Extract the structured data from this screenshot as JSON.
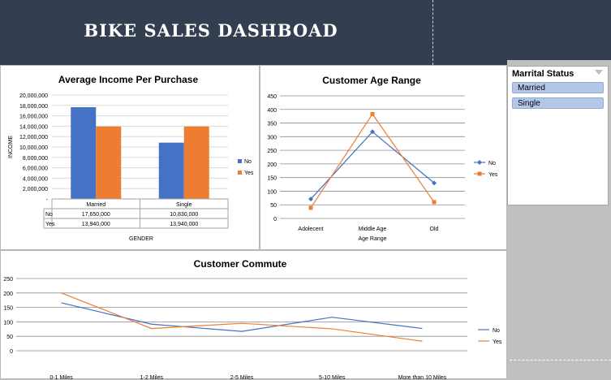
{
  "dashboard": {
    "title": "BIKE SALES DASHBOAD"
  },
  "colors": {
    "no": "#4472c4",
    "yes": "#ed7d31",
    "header": "#333f50",
    "grid": "#8c8c8c"
  },
  "slicer": {
    "title": "Marrital Status",
    "filter_icon": "filter-icon",
    "items": [
      "Married",
      "Single"
    ]
  },
  "chart_data": [
    {
      "type": "bar",
      "title": "Average Income  Per Purchase",
      "xlabel": "GENDER",
      "ylabel": "INCOME",
      "categories": [
        "Married",
        "Single"
      ],
      "series": [
        {
          "name": "No",
          "values": [
            17650000,
            10830000
          ],
          "display": [
            "17,650,000",
            "10,830,000"
          ]
        },
        {
          "name": "Yes",
          "values": [
            13940000,
            13940000
          ],
          "display": [
            "13,940,000",
            "13,940,000"
          ]
        }
      ],
      "ylim": [
        0,
        20000000
      ],
      "yticks": [
        "-",
        "2,000,000",
        "4,000,000",
        "6,000,000",
        "8,000,000",
        "10,000,000",
        "12,000,000",
        "14,000,000",
        "16,000,000",
        "18,000,000",
        "20,000,000"
      ],
      "legend": "right",
      "data_table": true
    },
    {
      "type": "line",
      "title": "Customer Age Range",
      "xlabel": "Age Range",
      "ylabel": "",
      "categories": [
        "Adolecent",
        "Middle Age",
        "Old"
      ],
      "series": [
        {
          "name": "No",
          "values": [
            71,
            318,
            130
          ]
        },
        {
          "name": "Yes",
          "values": [
            39,
            383,
            60
          ]
        }
      ],
      "ylim": [
        0,
        450
      ],
      "yticks": [
        "0",
        "50",
        "100",
        "150",
        "200",
        "250",
        "300",
        "350",
        "400",
        "450"
      ],
      "markers": true,
      "legend": "right"
    },
    {
      "type": "line",
      "title": "Customer Commute",
      "xlabel": "",
      "ylabel": "",
      "categories": [
        "0-1 Miles",
        "1-2 Miles",
        "2-5 Miles",
        "5-10 Miles",
        "More than 10 Miles"
      ],
      "series": [
        {
          "name": "No",
          "values": [
            166,
            92,
            67,
            116,
            77
          ]
        },
        {
          "name": "Yes",
          "values": [
            200,
            77,
            95,
            76,
            33
          ]
        }
      ],
      "ylim": [
        0,
        250
      ],
      "yticks": [
        "0",
        "50",
        "100",
        "150",
        "200",
        "250"
      ],
      "markers": false,
      "legend": "right"
    }
  ]
}
